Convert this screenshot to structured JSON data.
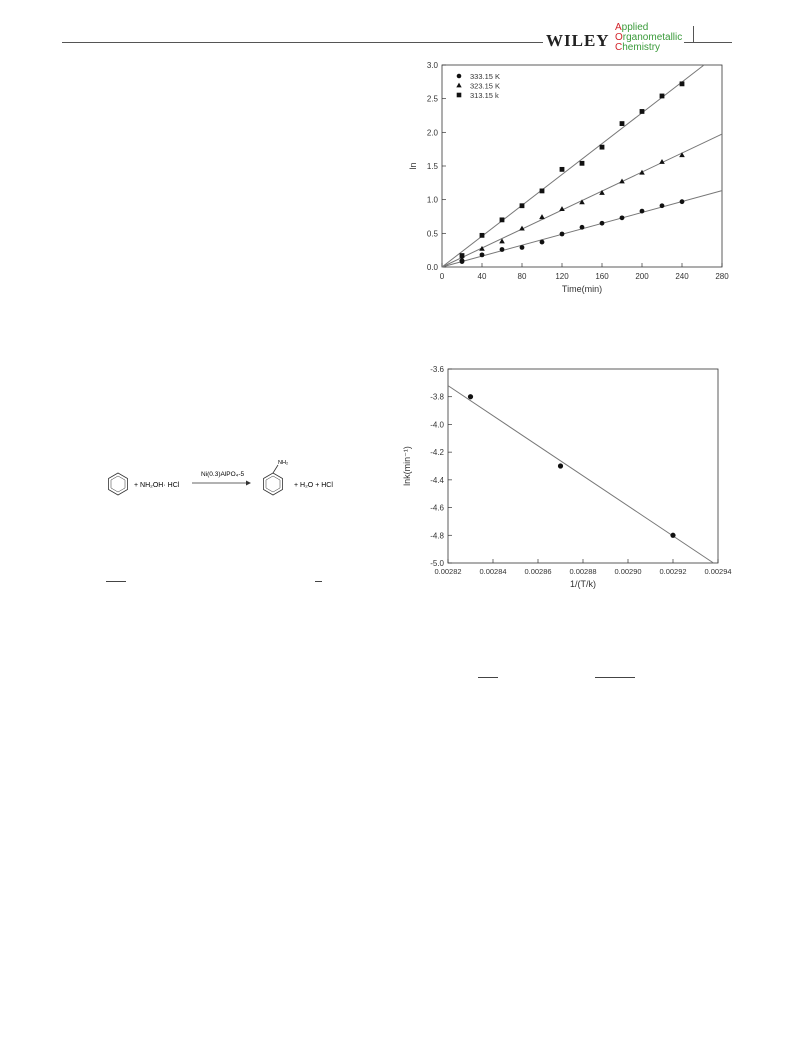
{
  "header": {
    "publisher": "WILEY",
    "journal": [
      {
        "first": "A",
        "rest": "pplied"
      },
      {
        "first": "O",
        "rest": "rganometallic"
      },
      {
        "first": "C",
        "rest": "hemistry"
      }
    ]
  },
  "colors": {
    "line": "#777777",
    "marker": "#111111",
    "journal_green": "#3a9a3a",
    "journal_red": "#d2232a"
  },
  "scheme": {
    "reactant_plus": "+ NH₂OH· HCl",
    "catalyst": "Ni(0.3)AlPO₄-5",
    "amine_label": "NH₂",
    "products": "+ H₂O + HCl"
  },
  "chart_data": [
    {
      "type": "scatter",
      "xlabel": "Time(min)",
      "ylabel": "ln",
      "xlim": [
        0,
        280
      ],
      "ylim": [
        0,
        3.0
      ],
      "x_ticks": [
        0,
        40,
        80,
        120,
        160,
        200,
        240,
        280
      ],
      "y_ticks": [
        0.0,
        0.5,
        1.0,
        1.5,
        2.0,
        2.5,
        3.0
      ],
      "legend_position": "top-left",
      "series": [
        {
          "name": "333.15 K",
          "marker": "circle",
          "x": [
            20,
            40,
            60,
            80,
            100,
            120,
            140,
            160,
            180,
            200,
            220,
            240
          ],
          "y": [
            0.08,
            0.18,
            0.26,
            0.29,
            0.37,
            0.49,
            0.59,
            0.65,
            0.73,
            0.83,
            0.91,
            0.97
          ],
          "fit_slope": 0.00405
        },
        {
          "name": "323.15 K",
          "marker": "triangle",
          "x": [
            20,
            40,
            60,
            80,
            100,
            120,
            140,
            160,
            180,
            200,
            220,
            240
          ],
          "y": [
            0.12,
            0.27,
            0.38,
            0.57,
            0.74,
            0.86,
            0.96,
            1.1,
            1.27,
            1.4,
            1.56,
            1.66
          ],
          "fit_slope": 0.00705
        },
        {
          "name": "313.15 k",
          "marker": "square",
          "x": [
            20,
            40,
            60,
            80,
            100,
            120,
            140,
            160,
            180,
            200,
            220,
            240
          ],
          "y": [
            0.17,
            0.47,
            0.7,
            0.91,
            1.13,
            1.45,
            1.54,
            1.78,
            2.13,
            2.31,
            2.54,
            2.72
          ],
          "fit_slope": 0.01145
        }
      ]
    },
    {
      "type": "scatter",
      "xlabel": "1/(T/k)",
      "ylabel": "lnk(min⁻¹)",
      "xlim": [
        0.00282,
        0.00294
      ],
      "ylim": [
        -5.0,
        -3.6
      ],
      "x_ticks": [
        "0.00282",
        "0.00284",
        "0.00286",
        "0.00288",
        "0.00290",
        "0.00292",
        "0.00294"
      ],
      "y_ticks": [
        "-3.6",
        "-3.8",
        "-4.0",
        "-4.2",
        "-4.4",
        "-4.6",
        "-4.8",
        "-5.0"
      ],
      "points": {
        "x": [
          0.00283,
          0.00287,
          0.00292
        ],
        "y": [
          -3.8,
          -4.3,
          -4.8
        ]
      },
      "fit": {
        "x": [
          0.00282,
          0.002938
        ],
        "y": [
          -3.72,
          -5.0
        ]
      }
    }
  ]
}
